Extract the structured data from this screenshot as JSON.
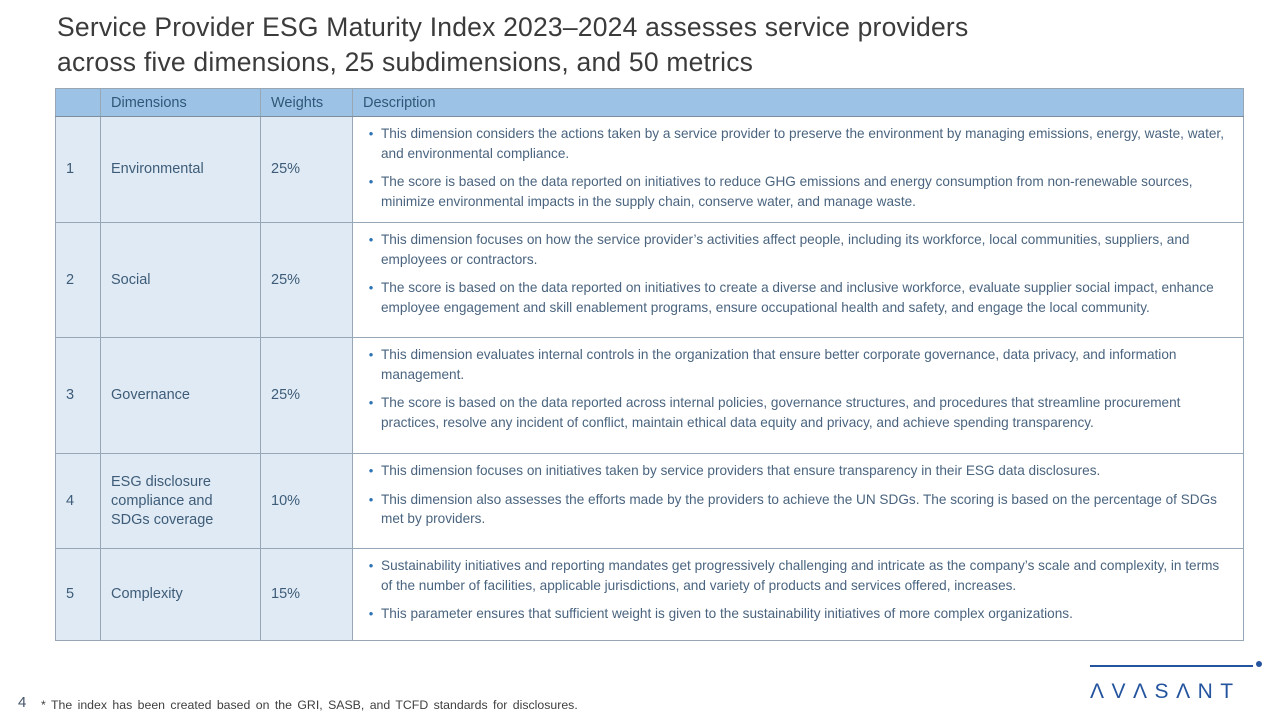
{
  "slide": {
    "title_lines": [
      "Service Provider ESG Maturity Index 2023–2024 assesses service providers",
      "across five dimensions, 25 subdimensions, and 50 metrics"
    ],
    "page_number": "4",
    "footnote": "* The index has been created based on the GRI, SASB, and TCFD standards for disclosures.",
    "logo": {
      "brand": "Avasant",
      "wordmark_display": "ΛVΛSΛNT"
    }
  },
  "table": {
    "headers": {
      "number": "",
      "dimensions": "Dimensions",
      "weights": "Weights",
      "description": "Description"
    },
    "rows": [
      {
        "num": "1",
        "dimension": "Environmental",
        "weight": "25%",
        "bullets": [
          "This dimension considers the actions taken by a service provider to preserve the environment by managing emissions, energy, waste, water, and environmental compliance.",
          "The score is based on the data reported on initiatives to reduce GHG emissions and energy consumption from non-renewable sources, minimize environmental impacts in the supply chain, conserve water, and manage waste."
        ]
      },
      {
        "num": "2",
        "dimension": "Social",
        "weight": "25%",
        "bullets": [
          "This dimension focuses on how the service provider’s activities affect people, including its workforce, local communities, suppliers, and employees or contractors.",
          "The score is based on the data reported on initiatives to create a diverse and inclusive workforce, evaluate supplier social impact, enhance employee engagement and skill enablement programs, ensure occupational health and safety, and engage the local community."
        ]
      },
      {
        "num": "3",
        "dimension": "Governance",
        "weight": "25%",
        "bullets": [
          "This dimension evaluates internal controls in the organization that ensure better corporate governance, data privacy, and information management.",
          "The score is based on the data reported across internal policies, governance structures, and procedures that streamline procurement practices, resolve any incident of conflict, maintain ethical data equity and privacy, and achieve spending transparency."
        ]
      },
      {
        "num": "4",
        "dimension": "ESG disclosure compliance and SDGs coverage",
        "weight": "10%",
        "bullets": [
          "This dimension focuses on initiatives taken by service providers that ensure transparency in their ESG data disclosures.",
          "This dimension also assesses the efforts made by the providers to achieve the UN SDGs. The scoring is based on the percentage of SDGs met by providers."
        ]
      },
      {
        "num": "5",
        "dimension": "Complexity",
        "weight": "15%",
        "bullets": [
          "Sustainability initiatives and reporting mandates get progressively challenging and intricate as the company’s scale and complexity, in terms of the number of facilities, applicable jurisdictions, and variety of products and services offered, increases.",
          "This parameter ensures that sufficient weight is given to the sustainability initiatives of more complex organizations."
        ]
      }
    ]
  },
  "colors": {
    "header_bg": "#9CC3E6",
    "shaded_cell_bg": "#DFEAF4",
    "table_border": "#98A7B5",
    "header_text": "#2F5876",
    "cell_text": "#3E5C78",
    "description_text": "#4A647F",
    "bullet": "#2E74B5",
    "title_text": "#3B3B3B",
    "logo_blue": "#24549E",
    "page_number_text": "#44546A"
  }
}
